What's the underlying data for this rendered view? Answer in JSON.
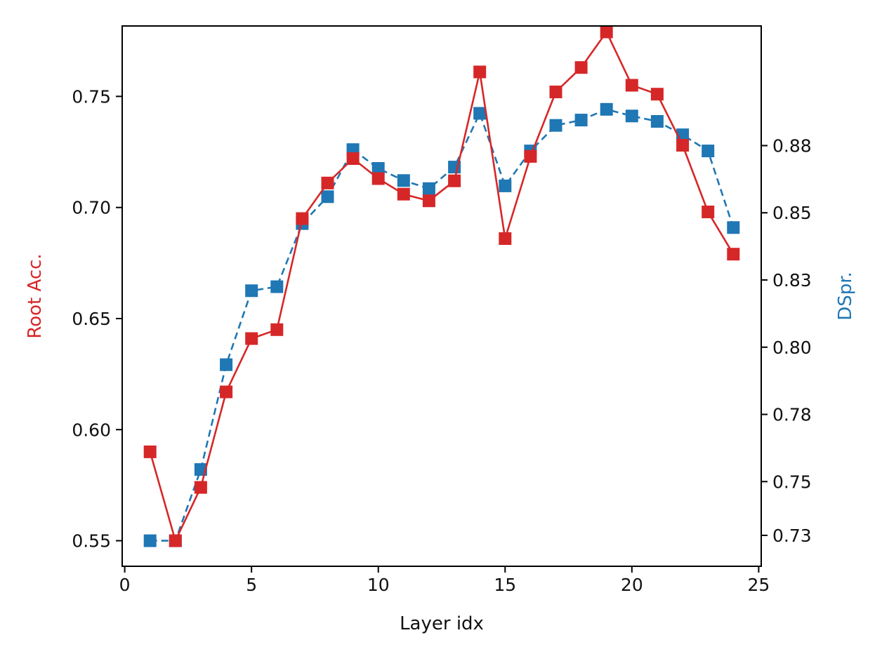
{
  "chart_data": {
    "type": "line",
    "xlabel": "Layer idx",
    "xlim": [
      -0.1,
      25.1
    ],
    "xticks": [
      0,
      5,
      10,
      15,
      20,
      25
    ],
    "x": [
      1,
      2,
      3,
      4,
      5,
      6,
      7,
      8,
      9,
      10,
      11,
      12,
      13,
      14,
      15,
      16,
      17,
      18,
      19,
      20,
      21,
      22,
      23,
      24
    ],
    "grid": false,
    "legend": "none",
    "left_axis": {
      "label": "Root Acc.",
      "color": "#d62728",
      "ylim": [
        0.5385,
        0.7817
      ],
      "ticks": [
        0.55,
        0.6,
        0.65,
        0.7,
        0.75
      ],
      "tick_labels": [
        "0.55",
        "0.60",
        "0.65",
        "0.70",
        "0.75"
      ]
    },
    "right_axis": {
      "label": "DSpr.",
      "color": "#1f77b4",
      "ylim": [
        0.7185,
        0.9195
      ],
      "ticks": [
        0.73,
        0.75,
        0.775,
        0.8,
        0.825,
        0.85,
        0.875
      ],
      "tick_labels": [
        "0.73",
        "0.75",
        "0.78",
        "0.80",
        "0.83",
        "0.85",
        "0.88"
      ]
    },
    "series": [
      {
        "axis": "left",
        "color": "#d62728",
        "line_style": "solid",
        "marker": "square",
        "values": [
          0.59,
          0.55,
          0.574,
          0.617,
          0.641,
          0.645,
          0.695,
          0.711,
          0.722,
          0.713,
          0.706,
          0.703,
          0.712,
          0.761,
          0.686,
          0.723,
          0.752,
          0.763,
          0.779,
          0.755,
          0.751,
          0.728,
          0.698,
          0.679
        ]
      },
      {
        "axis": "right",
        "color": "#1f77b4",
        "line_style": "dashed",
        "marker": "square",
        "values": [
          0.728,
          0.728,
          0.7545,
          0.7935,
          0.821,
          0.8225,
          0.846,
          0.856,
          0.8735,
          0.8665,
          0.862,
          0.859,
          0.867,
          0.887,
          0.86,
          0.873,
          0.8825,
          0.8845,
          0.8885,
          0.886,
          0.884,
          0.879,
          0.873,
          0.8445
        ]
      }
    ]
  }
}
